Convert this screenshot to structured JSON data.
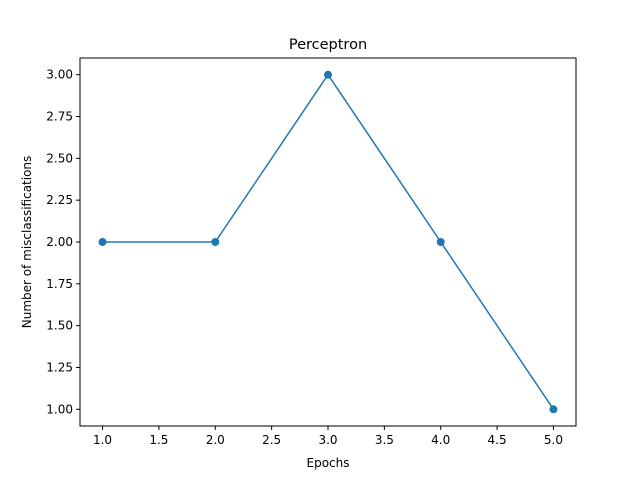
{
  "chart_data": {
    "type": "line",
    "title": "Perceptron",
    "xlabel": "Epochs",
    "ylabel": "Number of misclassifications",
    "x": [
      1,
      2,
      3,
      4,
      5
    ],
    "series": [
      {
        "values": [
          2,
          2,
          3,
          2,
          1
        ],
        "color": "#1f77b4",
        "marker": "circle"
      }
    ],
    "xlim": [
      0.8,
      5.2
    ],
    "ylim": [
      0.9,
      3.1
    ],
    "xticks": [
      "1.0",
      "1.5",
      "2.0",
      "2.5",
      "3.0",
      "3.5",
      "4.0",
      "4.5",
      "5.0"
    ],
    "yticks": [
      "1.00",
      "1.25",
      "1.50",
      "1.75",
      "2.00",
      "2.25",
      "2.50",
      "2.75",
      "3.00"
    ],
    "grid": false,
    "legend": "none"
  }
}
